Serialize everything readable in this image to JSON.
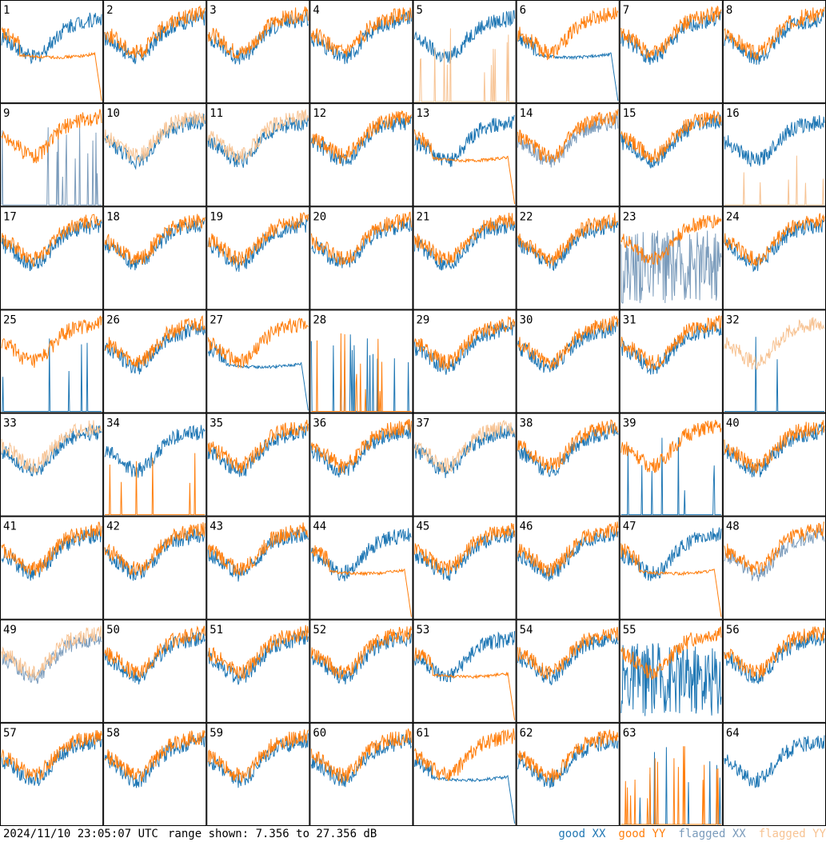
{
  "footer": {
    "timestamp": "2024/11/10 23:05:07 UTC",
    "range": "range shown: 7.356 to 27.356 dB"
  },
  "legend": [
    {
      "label": "good XX",
      "color": "#1f77b4"
    },
    {
      "label": "good YY",
      "color": "#ff7f0e"
    },
    {
      "label": "flagged XX",
      "color": "#7a9bbb"
    },
    {
      "label": "flagged YY",
      "color": "#f7c393"
    }
  ],
  "chart_data": {
    "type": "line",
    "layout": "8x8 small multiples",
    "ylim": [
      7.356,
      27.356
    ],
    "panels": [
      {
        "id": "1",
        "xx": "good",
        "yy": "good",
        "yy_pattern": "drop"
      },
      {
        "id": "2",
        "xx": "good",
        "yy": "good"
      },
      {
        "id": "3",
        "xx": "good",
        "yy": "good"
      },
      {
        "id": "4",
        "xx": "good",
        "yy": "good"
      },
      {
        "id": "5",
        "xx": "good",
        "yy": "flagged",
        "yy_pattern": "spikes"
      },
      {
        "id": "6",
        "xx": "good",
        "yy": "good",
        "xx_pattern": "drop"
      },
      {
        "id": "7",
        "xx": "good",
        "yy": "good"
      },
      {
        "id": "8",
        "xx": "good",
        "yy": "good"
      },
      {
        "id": "9",
        "xx": "flagged",
        "yy": "good",
        "xx_pattern": "spikes"
      },
      {
        "id": "10",
        "xx": "good",
        "yy": "flagged"
      },
      {
        "id": "11",
        "xx": "good",
        "yy": "flagged"
      },
      {
        "id": "12",
        "xx": "good",
        "yy": "good"
      },
      {
        "id": "13",
        "xx": "good",
        "yy": "good",
        "yy_pattern": "drop"
      },
      {
        "id": "14",
        "xx": "flagged",
        "yy": "good"
      },
      {
        "id": "15",
        "xx": "good",
        "yy": "good"
      },
      {
        "id": "16",
        "xx": "good",
        "yy": "flagged",
        "yy_pattern": "spikes"
      },
      {
        "id": "17",
        "xx": "good",
        "yy": "good"
      },
      {
        "id": "18",
        "xx": "good",
        "yy": "good"
      },
      {
        "id": "19",
        "xx": "good",
        "yy": "good"
      },
      {
        "id": "20",
        "xx": "good",
        "yy": "good"
      },
      {
        "id": "21",
        "xx": "good",
        "yy": "good"
      },
      {
        "id": "22",
        "xx": "good",
        "yy": "good"
      },
      {
        "id": "23",
        "xx": "flagged",
        "yy": "good",
        "xx_pattern": "noisy"
      },
      {
        "id": "24",
        "xx": "good",
        "yy": "good"
      },
      {
        "id": "25",
        "xx": "good",
        "yy": "good",
        "xx_pattern": "spikes"
      },
      {
        "id": "26",
        "xx": "good",
        "yy": "good"
      },
      {
        "id": "27",
        "xx": "good",
        "yy": "good",
        "xx_pattern": "drop"
      },
      {
        "id": "28",
        "xx": "good",
        "yy": "good",
        "yy_pattern": "spikes",
        "xx_pattern": "spikes"
      },
      {
        "id": "29",
        "xx": "good",
        "yy": "good"
      },
      {
        "id": "30",
        "xx": "good",
        "yy": "good"
      },
      {
        "id": "31",
        "xx": "good",
        "yy": "good"
      },
      {
        "id": "32",
        "xx": "good",
        "yy": "flagged",
        "xx_pattern": "spikes"
      },
      {
        "id": "33",
        "xx": "good",
        "yy": "flagged"
      },
      {
        "id": "34",
        "xx": "good",
        "yy": "good",
        "yy_pattern": "spikes"
      },
      {
        "id": "35",
        "xx": "good",
        "yy": "good"
      },
      {
        "id": "36",
        "xx": "good",
        "yy": "good"
      },
      {
        "id": "37",
        "xx": "good",
        "yy": "flagged"
      },
      {
        "id": "38",
        "xx": "good",
        "yy": "good"
      },
      {
        "id": "39",
        "xx": "good",
        "yy": "good",
        "xx_pattern": "spikes"
      },
      {
        "id": "40",
        "xx": "good",
        "yy": "good"
      },
      {
        "id": "41",
        "xx": "good",
        "yy": "good"
      },
      {
        "id": "42",
        "xx": "good",
        "yy": "good"
      },
      {
        "id": "43",
        "xx": "good",
        "yy": "good"
      },
      {
        "id": "44",
        "xx": "good",
        "yy": "good",
        "yy_pattern": "drop"
      },
      {
        "id": "45",
        "xx": "good",
        "yy": "good"
      },
      {
        "id": "46",
        "xx": "good",
        "yy": "good"
      },
      {
        "id": "47",
        "xx": "good",
        "yy": "good",
        "yy_pattern": "drop"
      },
      {
        "id": "48",
        "xx": "flagged",
        "yy": "good"
      },
      {
        "id": "49",
        "xx": "flagged",
        "yy": "flagged"
      },
      {
        "id": "50",
        "xx": "good",
        "yy": "good"
      },
      {
        "id": "51",
        "xx": "good",
        "yy": "good"
      },
      {
        "id": "52",
        "xx": "good",
        "yy": "good"
      },
      {
        "id": "53",
        "xx": "good",
        "yy": "good",
        "yy_pattern": "drop"
      },
      {
        "id": "54",
        "xx": "good",
        "yy": "good"
      },
      {
        "id": "55",
        "xx": "good",
        "yy": "good",
        "xx_pattern": "noisy"
      },
      {
        "id": "56",
        "xx": "good",
        "yy": "good"
      },
      {
        "id": "57",
        "xx": "good",
        "yy": "good"
      },
      {
        "id": "58",
        "xx": "good",
        "yy": "good"
      },
      {
        "id": "59",
        "xx": "good",
        "yy": "good"
      },
      {
        "id": "60",
        "xx": "good",
        "yy": "good"
      },
      {
        "id": "61",
        "xx": "good",
        "yy": "good",
        "xx_pattern": "drop"
      },
      {
        "id": "62",
        "xx": "good",
        "yy": "good"
      },
      {
        "id": "63",
        "xx": "good",
        "yy": "good",
        "yy_pattern": "spikes",
        "xx_pattern": "spikes"
      },
      {
        "id": "64",
        "xx": "good",
        "yy": "good",
        "yy_pattern": "absent"
      }
    ]
  }
}
